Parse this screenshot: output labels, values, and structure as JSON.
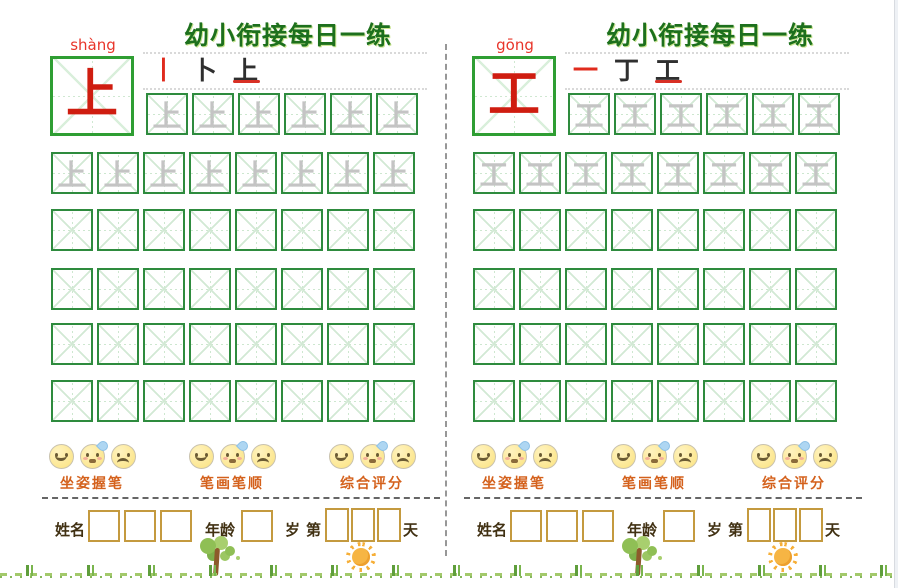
{
  "pages": [
    {
      "title": "幼小衔接每日一练",
      "pinyin": "shàng",
      "character": "上",
      "trace_char": "上",
      "stroke_steps": [
        "丨",
        "卜",
        "上"
      ],
      "score_groups": [
        {
          "label": "坐姿握笔"
        },
        {
          "label": "笔画笔顺"
        },
        {
          "label": "综合评分"
        }
      ],
      "footer": {
        "name_label": "姓名",
        "age_label": "年龄",
        "age_unit": "岁",
        "day_prefix": "第",
        "day_suffix": "天"
      },
      "grid": {
        "rows": [
          {
            "cells": 6,
            "traced": true
          },
          {
            "cells": 8,
            "traced": true
          },
          {
            "cells": 8,
            "traced": false
          },
          {
            "cells": 8,
            "traced": false
          },
          {
            "cells": 8,
            "traced": false
          },
          {
            "cells": 8,
            "traced": false
          }
        ]
      }
    },
    {
      "title": "幼小衔接每日一练",
      "pinyin": "gōng",
      "character": "工",
      "trace_char": "工",
      "stroke_steps": [
        "一",
        "丁",
        "工"
      ],
      "score_groups": [
        {
          "label": "坐姿握笔"
        },
        {
          "label": "笔画笔顺"
        },
        {
          "label": "综合评分"
        }
      ],
      "footer": {
        "name_label": "姓名",
        "age_label": "年龄",
        "age_unit": "岁",
        "day_prefix": "第",
        "day_suffix": "天"
      },
      "grid": {
        "rows": [
          {
            "cells": 6,
            "traced": true
          },
          {
            "cells": 8,
            "traced": true
          },
          {
            "cells": 8,
            "traced": false
          },
          {
            "cells": 8,
            "traced": false
          },
          {
            "cells": 8,
            "traced": false
          },
          {
            "cells": 8,
            "traced": false
          }
        ]
      }
    }
  ],
  "colors": {
    "title_green": "#1d701d",
    "box_green": "#2f9e33",
    "cell_green": "#2e8b3e",
    "guide_green": "#d2e9d4",
    "character_red": "#cf1d10",
    "pinyin_red": "#e8352a",
    "trace_gray": "#c4c4c4",
    "score_label_orange": "#d4611c",
    "footer_box_gold": "#c49a3f"
  }
}
